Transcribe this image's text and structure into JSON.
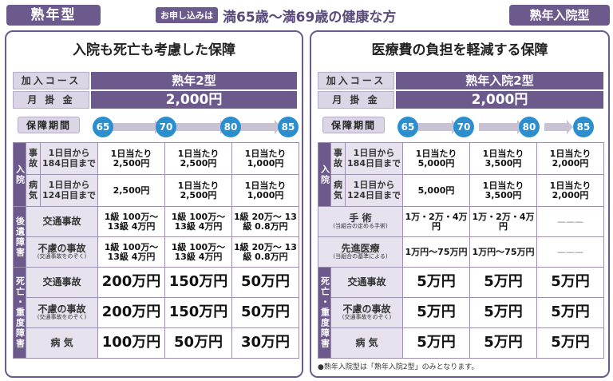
{
  "header": {
    "left_tag": "熟年型",
    "apply_label": "お申し込みは",
    "age_range": "満65歳〜満69歳の健康な方",
    "right_tag": "熟年入院型"
  },
  "left": {
    "title": "入院も死亡も考慮した保障",
    "course_label": "加入コース",
    "course_value": "熟年2型",
    "premium_label": "月 掛 金",
    "premium_value": "2,000円",
    "period_label": "保障期間",
    "ages": [
      "65歳",
      "70歳",
      "80歳",
      "85歳"
    ],
    "cat_hosp": "入院",
    "row_accident_sub1": "事故",
    "row_accident_sub2": "1日目から184日目まで",
    "row_accident": [
      "1日当たり 2,500円",
      "1日当たり 2,500円",
      "1日当たり 1,000円"
    ],
    "row_illness_sub1": "病気",
    "row_illness_sub2": "1日目から124日目まで",
    "row_illness": [
      "2,500円",
      "1日当たり 2,500円",
      "1日当たり 1,000円"
    ],
    "cat_disab": "後遺障害",
    "row_traffic_disab_label": "交通事故",
    "row_traffic_disab": [
      "1級 100万〜 13級 4万円",
      "1級 100万〜 13級 4万円",
      "1級 20万〜 13級 0.8万円"
    ],
    "row_unexpected_disab_label": "不慮の事故",
    "row_unexpected_disab_sub": "(交通事故をのぞく)",
    "row_unexpected_disab": [
      "1級 100万〜 13級 4万円",
      "1級 100万〜 13級 4万円",
      "1級 20万〜 13級 0.8万円"
    ],
    "cat_death": "死亡・重度障害",
    "row_traffic_death_label": "交通事故",
    "row_traffic_death": [
      "200万円",
      "150万円",
      "50万円"
    ],
    "row_unexpected_death_label": "不慮の事故",
    "row_unexpected_death_sub": "(交通事故をのぞく)",
    "row_unexpected_death": [
      "200万円",
      "150万円",
      "50万円"
    ],
    "row_disease_label": "病 気",
    "row_disease": [
      "100万円",
      "50万円",
      "30万円"
    ]
  },
  "right": {
    "title": "医療費の負担を軽減する保障",
    "course_label": "加入コース",
    "course_value": "熟年入院2型",
    "premium_label": "月 掛 金",
    "premium_value": "2,000円",
    "period_label": "保障期間",
    "ages": [
      "65歳",
      "70歳",
      "80歳",
      "85歳"
    ],
    "cat_hosp": "入院",
    "row_accident_sub1": "事故",
    "row_accident_sub2": "1日目から184日目まで",
    "row_accident": [
      "1日当たり 5,000円",
      "1日当たり 3,500円",
      "1日当たり 2,000円"
    ],
    "row_illness_sub1": "病気",
    "row_illness_sub2": "1日目から124日目まで",
    "row_illness": [
      "5,000円",
      "1日当たり 3,500円",
      "1日当たり 2,000円"
    ],
    "row_surgery_label": "手 術",
    "row_surgery_sub": "(当組合の定める手術)",
    "row_surgery": [
      "1万・2万・4万円",
      "1万・2万・4万円",
      "———"
    ],
    "row_advanced_label": "先進医療",
    "row_advanced_sub": "(当組合の基準による)",
    "row_advanced": [
      "1万円〜75万円",
      "1万円〜75万円",
      "———"
    ],
    "cat_death": "死亡・重度障害",
    "row_traffic_death_label": "交通事故",
    "row_traffic_death": [
      "5万円",
      "5万円",
      "5万円"
    ],
    "row_unexpected_death_label": "不慮の事故",
    "row_unexpected_death_sub": "(交通事故をのぞく)",
    "row_unexpected_death": [
      "5万円",
      "5万円",
      "5万円"
    ],
    "row_disease_label": "病 気",
    "row_disease": [
      "5万円",
      "5万円",
      "5万円"
    ],
    "note": "●熟年入院型は「熟年入院2型」のみとなります。"
  }
}
